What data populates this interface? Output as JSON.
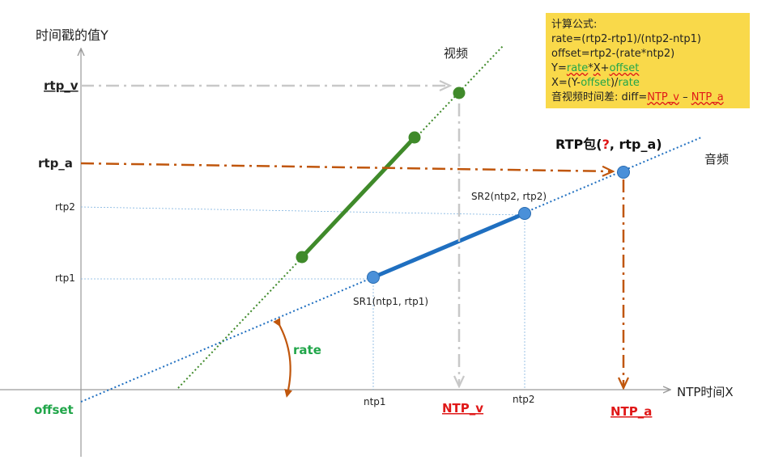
{
  "labels": {
    "y_axis_title": "时间戳的值Y",
    "x_axis_title": "NTP时间X",
    "rtp_v": "rtp_v",
    "rtp_a": "rtp_a",
    "rtp2": "rtp2",
    "rtp1": "rtp1",
    "offset": "offset",
    "rate": "rate",
    "video": "视频",
    "audio": "音频",
    "sr1": "SR1(ntp1, rtp1)",
    "sr2": "SR2(ntp2, rtp2)",
    "rtp_packet_prefix": "RTP包(",
    "rtp_packet_q": "?",
    "rtp_packet_suffix": ", rtp_a)",
    "ntp1": "ntp1",
    "ntp2": "ntp2",
    "ntp_v": "NTP_v",
    "ntp_a": "NTP_a"
  },
  "formula": {
    "title": "计算公式:",
    "line1": "rate=(rtp2-rtp1)/(ntp2-ntp1)",
    "line2": "offset=rtp2-(rate*ntp2)",
    "line3_y": "Y=",
    "line3_rate": "rate",
    "line3_mul": "*",
    "line3_x": "X",
    "line3_plus": "+",
    "line3_offset": "offset",
    "line4_x": "X=(Y-",
    "line4_offset": "offset",
    "line4_div": ")/",
    "line4_rate": "rate",
    "line5_prefix": "音视频时间差:  diff=",
    "line5_ntpv": "NTP_v",
    "line5_minus": " – ",
    "line5_ntpa": "NTP_a"
  },
  "colors": {
    "video_line": "#3f8a2a",
    "audio_line": "#1f6fc0",
    "audio_point": "#4a90d9",
    "orange_arrow": "#c0560c",
    "gray_arrow": "#c8c8c8",
    "green_label": "#21a64a",
    "red_label": "#e01818",
    "formula_bg": "#f9d94a"
  }
}
